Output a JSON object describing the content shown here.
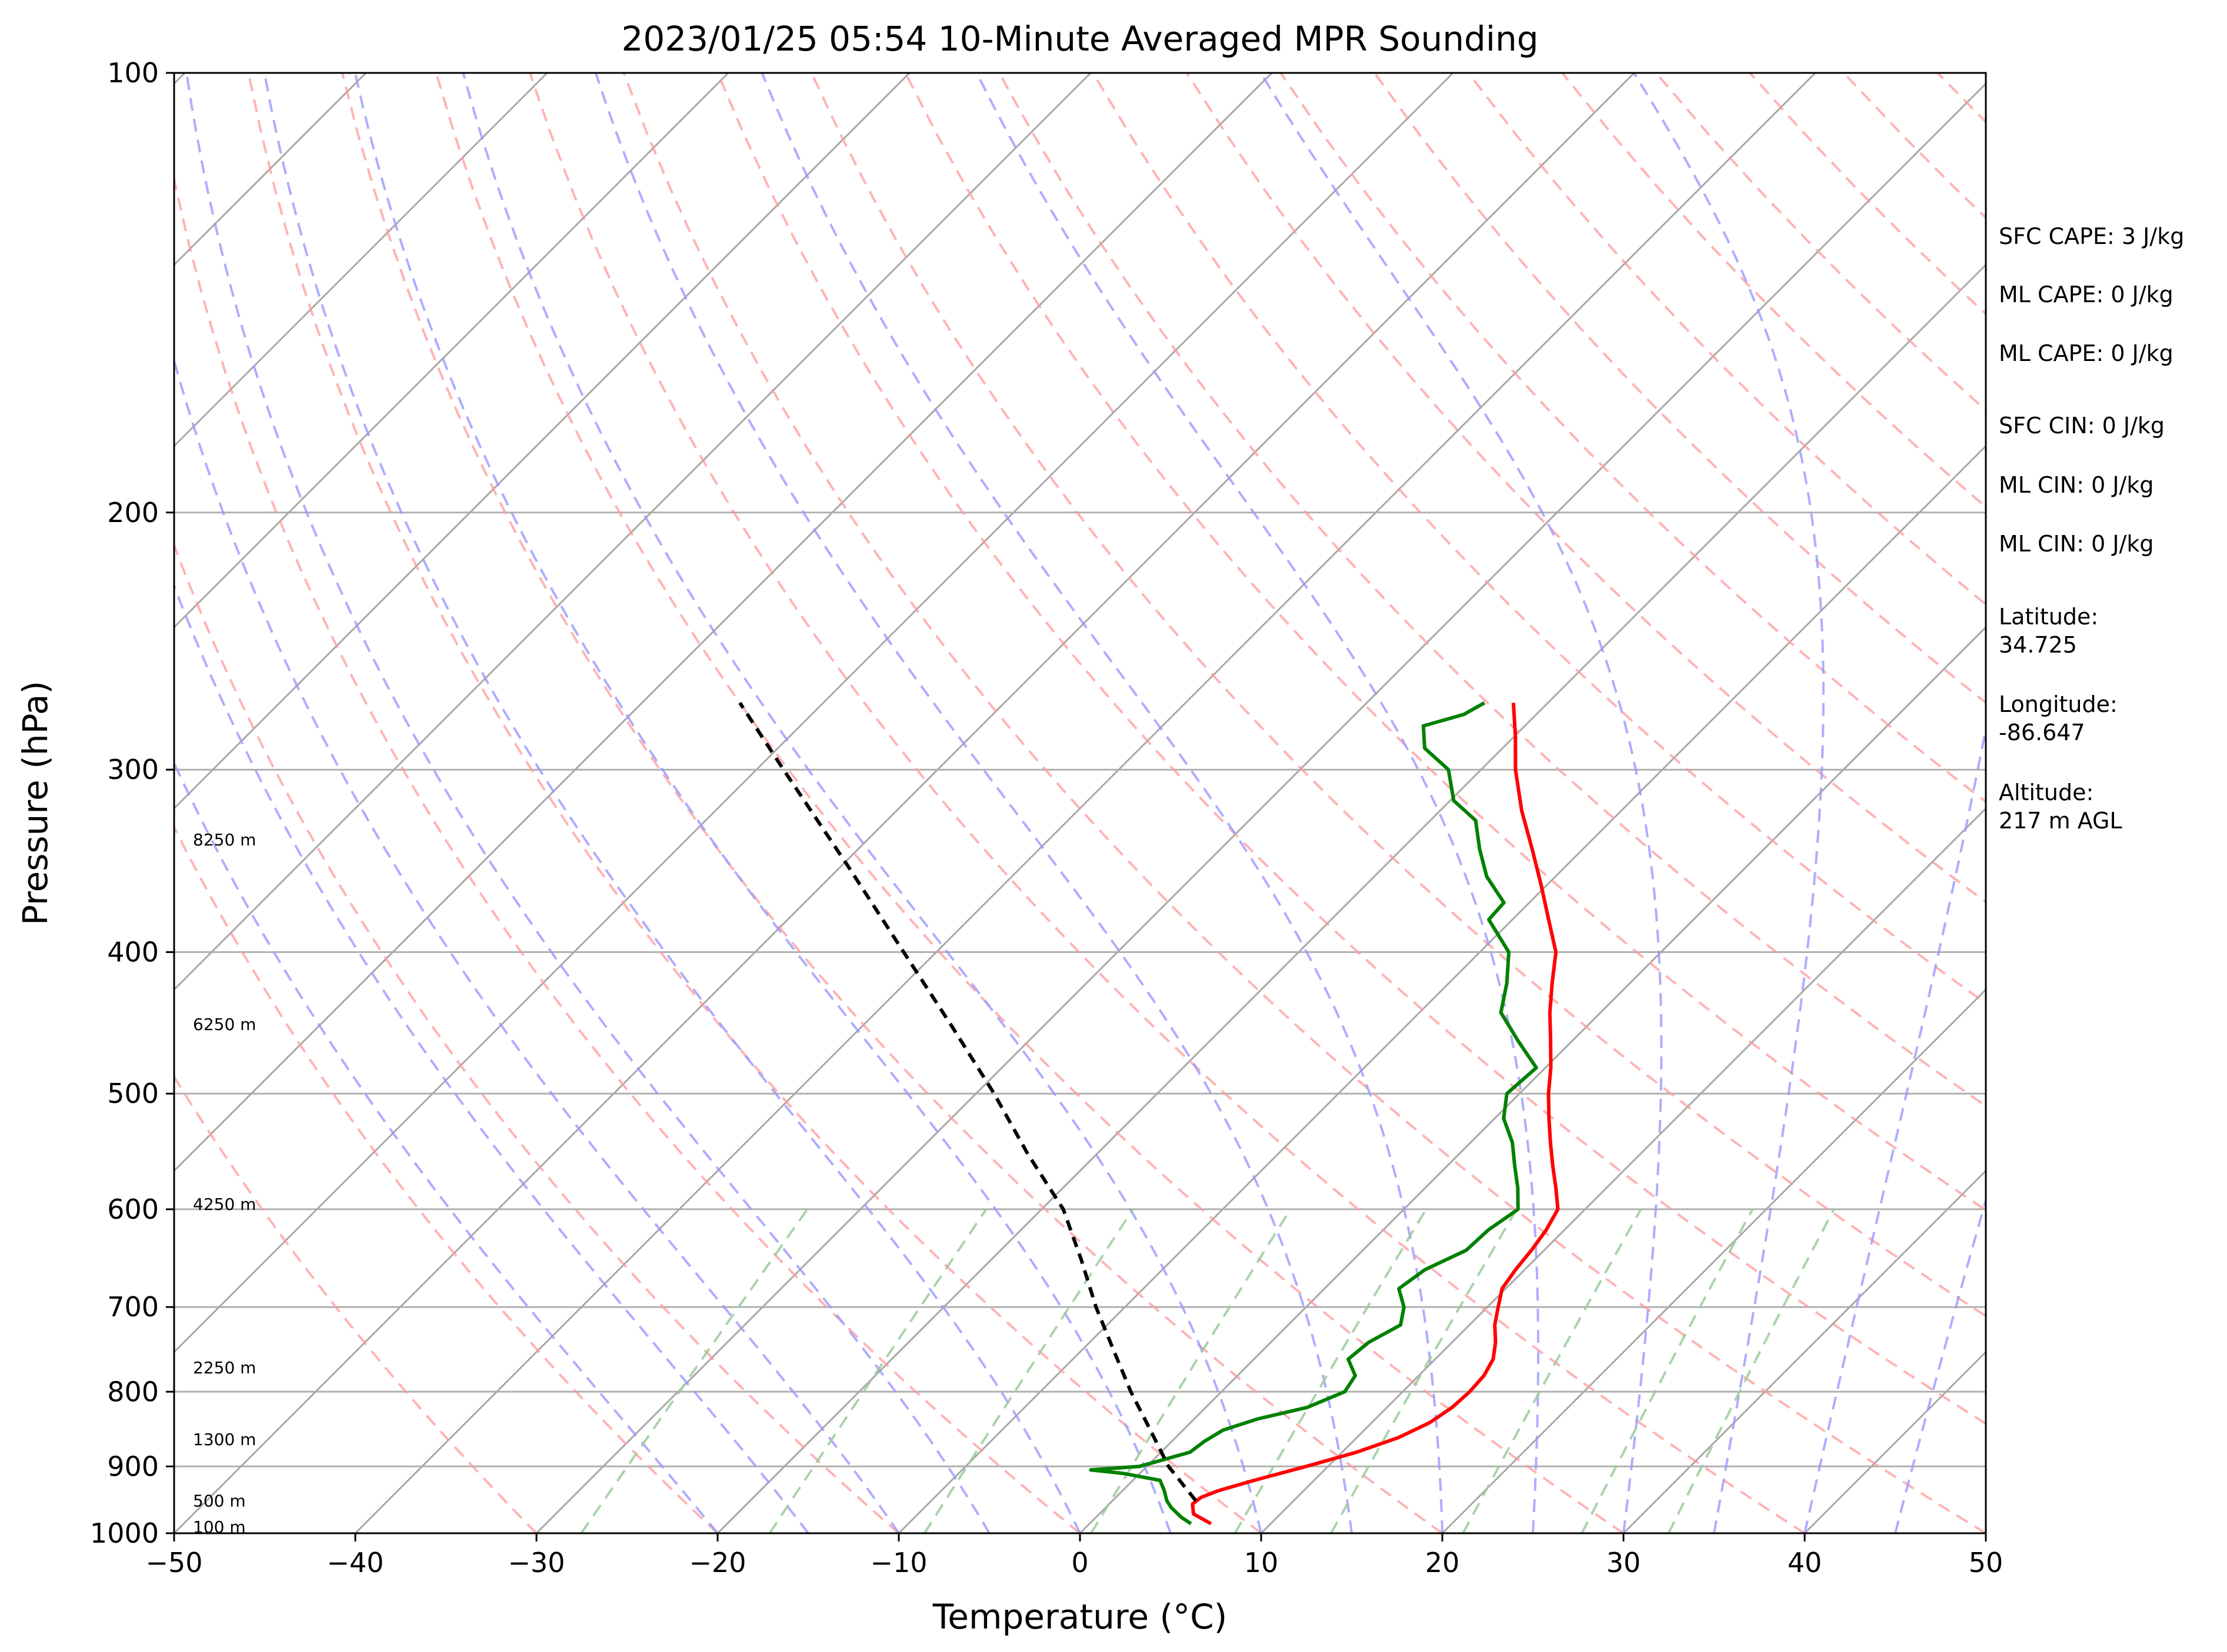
{
  "chart_data": {
    "type": "line",
    "title": "2023/01/25 05:54 10-Minute Averaged MPR Sounding",
    "xlabel": "Temperature (°C)",
    "ylabel": "Pressure (hPa)",
    "xlim": [
      -50,
      50
    ],
    "ylim": [
      1000,
      100
    ],
    "y_scale": "log",
    "grid": true,
    "x_ticks": [
      -50,
      -40,
      -30,
      -20,
      -10,
      0,
      10,
      20,
      30,
      40,
      50
    ],
    "x_tick_labels": [
      "−50",
      "−40",
      "−30",
      "−20",
      "−10",
      "0",
      "10",
      "20",
      "30",
      "40",
      "50"
    ],
    "y_ticks": [
      1000,
      900,
      800,
      700,
      600,
      500,
      400,
      300,
      200,
      100
    ],
    "y_tick_labels": [
      "1000",
      "900",
      "800",
      "700",
      "600",
      "500",
      "400",
      "300",
      "200",
      "100"
    ],
    "height_labels": [
      {
        "text": "100 m",
        "p": 990
      },
      {
        "text": "500 m",
        "p": 950
      },
      {
        "text": "1300 m",
        "p": 862
      },
      {
        "text": "2250 m",
        "p": 770
      },
      {
        "text": "4250 m",
        "p": 595
      },
      {
        "text": "6250 m",
        "p": 448
      },
      {
        "text": "8250 m",
        "p": 335
      }
    ],
    "series": [
      {
        "color": "#ff0000",
        "p": [
          985,
          970,
          955,
          945,
          935,
          920,
          900,
          880,
          860,
          840,
          820,
          800,
          780,
          760,
          740,
          720,
          700,
          680,
          660,
          640,
          620,
          600,
          580,
          560,
          540,
          520,
          500,
          480,
          460,
          440,
          420,
          400,
          380,
          360,
          340,
          320,
          300,
          285,
          270
        ],
        "x": [
          6.7,
          5.2,
          4.6,
          4.7,
          5.3,
          6.7,
          8.8,
          10.8,
          12.3,
          13.2,
          13.6,
          13.7,
          13.6,
          13.2,
          12.4,
          11.4,
          10.6,
          9.8,
          9.5,
          9.3,
          9.0,
          8.5,
          7.2,
          5.8,
          4.4,
          3.0,
          1.6,
          0.3,
          -1.2,
          -2.8,
          -4.3,
          -5.8,
          -8.0,
          -10.3,
          -12.8,
          -15.5,
          -18.1,
          -19.9,
          -21.9
        ]
      },
      {
        "color": "#008000",
        "p": [
          985,
          975,
          960,
          950,
          935,
          920,
          910,
          905,
          900,
          880,
          865,
          850,
          835,
          820,
          800,
          780,
          760,
          740,
          720,
          700,
          680,
          660,
          640,
          620,
          600,
          580,
          560,
          540,
          520,
          500,
          480,
          460,
          440,
          420,
          400,
          380,
          370,
          355,
          340,
          325,
          315,
          300,
          290,
          280,
          275,
          270
        ],
        "x": [
          5.6,
          4.7,
          3.6,
          3.0,
          2.3,
          1.5,
          -0.9,
          -2.9,
          -0.4,
          1.6,
          1.8,
          2.2,
          3.5,
          5.6,
          6.8,
          6.5,
          5.2,
          5.4,
          6.2,
          5.4,
          4.1,
          4.5,
          5.7,
          5.8,
          6.3,
          5.1,
          3.7,
          2.3,
          0.5,
          -0.7,
          -0.5,
          -3.0,
          -5.5,
          -6.8,
          -8.4,
          -11.3,
          -11.4,
          -13.8,
          -15.7,
          -17.5,
          -19.8,
          -21.8,
          -24.3,
          -25.6,
          -24.0,
          -23.5
        ]
      },
      {
        "color": "#000000",
        "dashed": true,
        "p": [
          950,
          900,
          850,
          800,
          750,
          700,
          650,
          600,
          550,
          500,
          450,
          400,
          350,
          300,
          270
        ],
        "x": [
          4.6,
          1.2,
          -1.8,
          -5.0,
          -8.2,
          -11.6,
          -15.0,
          -18.8,
          -23.8,
          -29.0,
          -35.0,
          -41.8,
          -49.5,
          -58.5,
          -64.6
        ]
      }
    ],
    "dry_adiabats": {
      "theta_c": [
        -30,
        -20,
        -10,
        0,
        10,
        20,
        30,
        40,
        50,
        60,
        70,
        80,
        90,
        100,
        110,
        120,
        130,
        140,
        150,
        160,
        170,
        180,
        190
      ],
      "color": "#ff9999"
    },
    "moist_adiabats": {
      "theta_w_c": [
        -20,
        -15,
        -10,
        -5,
        0,
        5,
        10,
        15,
        20,
        25,
        30,
        35,
        40,
        45
      ],
      "color": "#9999ff"
    },
    "mixing_ratio_lines": {
      "w_gkg": [
        0.4,
        1,
        2,
        4,
        7,
        10,
        16,
        24,
        32
      ],
      "p_top": 600,
      "color": "#99cc99"
    },
    "annotations": [
      "SFC CAPE: 3 J/kg",
      "ML CAPE: 0 J/kg",
      "ML CAPE: 0 J/kg",
      "SFC CIN: 0 J/kg",
      "ML CIN: 0 J/kg",
      "ML CIN: 0 J/kg"
    ],
    "station": {
      "latitude_label": "Latitude:",
      "latitude_value": "34.725",
      "longitude_label": "Longitude:",
      "longitude_value": "-86.647",
      "altitude_label": "Altitude:",
      "altitude_value": "217 m AGL"
    }
  }
}
